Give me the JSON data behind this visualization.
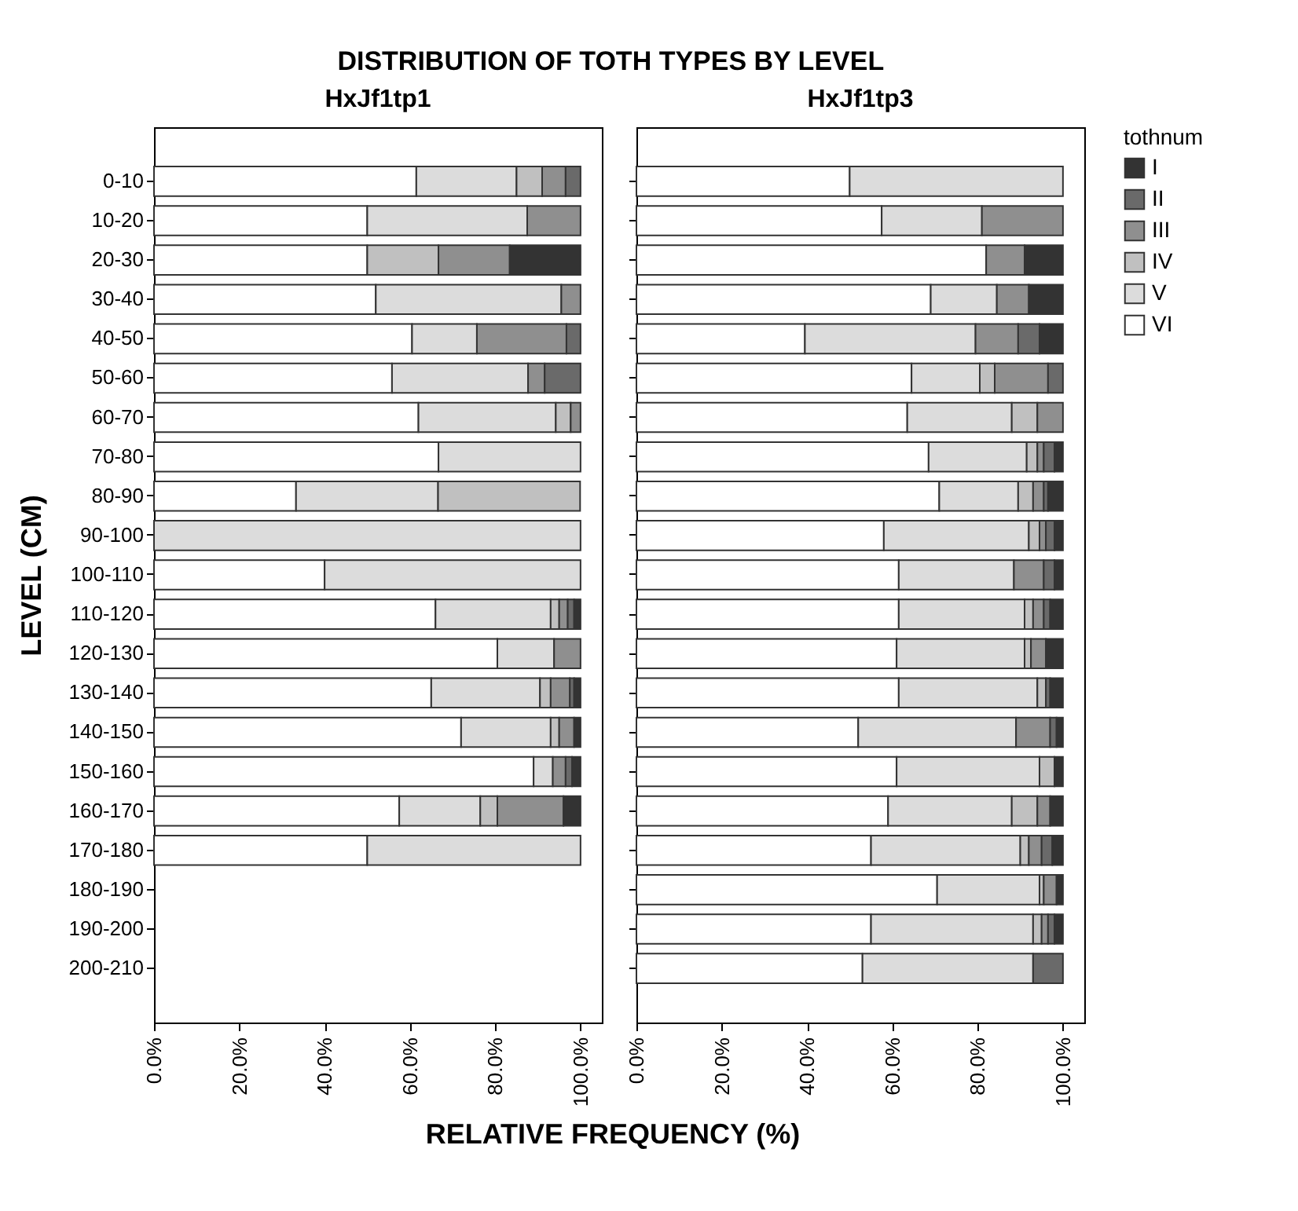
{
  "chart_data": [
    {
      "type": "bar",
      "title": "DISTRIBUTION OF TOTH TYPES BY LEVEL",
      "subtitle": "HxJf1tp1",
      "xlabel": "RELATIVE FREQUENCY (%)",
      "ylabel": "LEVEL (CM)",
      "stacked": true,
      "orientation": "horizontal",
      "categories": [
        "0-10",
        "10-20",
        "20-30",
        "30-40",
        "40-50",
        "50-60",
        "60-70",
        "70-80",
        "80-90",
        "90-100",
        "100-110",
        "110-120",
        "120-130",
        "130-140",
        "140-150",
        "150-160",
        "160-170",
        "170-180",
        "180-190",
        "190-200",
        "200-210"
      ],
      "xlim": [
        0,
        105
      ],
      "xticks": [
        {
          "value": 0,
          "label": "0.0%"
        },
        {
          "value": 20,
          "label": "20.0%"
        },
        {
          "value": 40,
          "label": "40.0%"
        },
        {
          "value": 60,
          "label": "60.0%"
        },
        {
          "value": 80,
          "label": "80.0%"
        },
        {
          "value": 100,
          "label": "100.0%"
        }
      ],
      "series": [
        {
          "color": "#ffffff",
          "values": [
            61.5,
            50,
            50,
            52,
            60.5,
            55.8,
            62,
            66.7,
            33.3,
            null,
            40,
            66,
            80.5,
            65,
            72,
            89,
            57.5,
            50,
            null,
            null,
            null
          ]
        },
        {
          "color": "#dcdcdc",
          "values": [
            23.5,
            37.5,
            null,
            43.5,
            15.2,
            31.9,
            32.2,
            33.3,
            33.3,
            100,
            60,
            27,
            13.3,
            25.5,
            21,
            4.5,
            19,
            50,
            null,
            null,
            null
          ]
        },
        {
          "color": "#c0c0c0",
          "values": [
            6,
            null,
            16.7,
            null,
            null,
            null,
            3.5,
            null,
            33.3,
            null,
            null,
            2,
            null,
            2.5,
            2,
            null,
            4,
            null,
            null,
            null,
            null
          ]
        },
        {
          "color": "#8f8f8f",
          "values": [
            5.5,
            12.5,
            16.7,
            4.5,
            21,
            3.9,
            2.3,
            null,
            null,
            null,
            null,
            2,
            6.2,
            4.5,
            3.5,
            3,
            15.5,
            null,
            null,
            null,
            null
          ]
        },
        {
          "color": "#6a6a6a",
          "values": [
            3.5,
            null,
            null,
            null,
            3.3,
            8.4,
            null,
            null,
            null,
            null,
            null,
            1.5,
            null,
            1,
            null,
            1.5,
            null,
            null,
            null,
            null,
            null
          ]
        },
        {
          "color": "#333333",
          "values": [
            null,
            null,
            16.6,
            null,
            null,
            null,
            null,
            null,
            null,
            null,
            null,
            1.5,
            null,
            1.5,
            1.5,
            2,
            4,
            null,
            null,
            null,
            null
          ]
        }
      ]
    },
    {
      "type": "bar",
      "subtitle": "HxJf1tp3",
      "stacked": true,
      "orientation": "horizontal",
      "tick_labels": "x",
      "legend": "right",
      "legend_title": "tothnum",
      "categories": [
        null,
        null,
        null,
        null,
        null,
        null,
        null,
        null,
        null,
        null,
        null,
        null,
        null,
        null,
        null,
        null,
        null,
        null,
        null,
        null,
        null
      ],
      "xlim": [
        0,
        105
      ],
      "xticks": [
        {
          "value": 0,
          "label": "0.0%"
        },
        {
          "value": 20,
          "label": "20.0%"
        },
        {
          "value": 40,
          "label": "40.0%"
        },
        {
          "value": 60,
          "label": "60.0%"
        },
        {
          "value": 80,
          "label": "80.0%"
        },
        {
          "value": 100,
          "label": "100.0%"
        }
      ],
      "series": [
        {
          "name": "VI",
          "color": "#ffffff",
          "values": [
            50,
            57.5,
            82,
            69,
            39.5,
            64.5,
            63.5,
            68.5,
            71,
            58,
            61.5,
            61.5,
            61,
            61.5,
            52,
            61,
            59,
            55,
            70.5,
            55,
            53
          ]
        },
        {
          "name": "V",
          "color": "#dcdcdc",
          "values": [
            50,
            23.5,
            null,
            15.5,
            40,
            16,
            24.5,
            23,
            18.5,
            34,
            27,
            29.5,
            30,
            32.5,
            37,
            33.5,
            29,
            35,
            24,
            38,
            40
          ]
        },
        {
          "name": "IV",
          "color": "#c0c0c0",
          "values": [
            null,
            null,
            null,
            null,
            null,
            3.5,
            6,
            2.5,
            3.5,
            2.5,
            null,
            2,
            1.5,
            2,
            null,
            3.5,
            6,
            2,
            1,
            2,
            null
          ]
        },
        {
          "name": "III",
          "color": "#8f8f8f",
          "values": [
            null,
            19,
            9,
            7.5,
            10,
            12.5,
            6,
            1.5,
            2.5,
            1.5,
            7,
            2.5,
            3.5,
            null,
            8,
            null,
            3,
            3,
            3,
            1.5,
            null
          ]
        },
        {
          "name": "II",
          "color": "#6a6a6a",
          "values": [
            null,
            null,
            null,
            null,
            5,
            3.5,
            null,
            2.5,
            1,
            2,
            2.5,
            1.5,
            null,
            1,
            1.5,
            null,
            null,
            2.5,
            null,
            1.5,
            7
          ]
        },
        {
          "name": "I",
          "color": "#333333",
          "values": [
            null,
            null,
            9,
            8,
            5.5,
            null,
            null,
            2,
            3.5,
            2,
            2,
            3,
            4,
            3,
            1.5,
            2,
            3,
            2.5,
            1.5,
            2,
            null
          ]
        }
      ]
    }
  ]
}
